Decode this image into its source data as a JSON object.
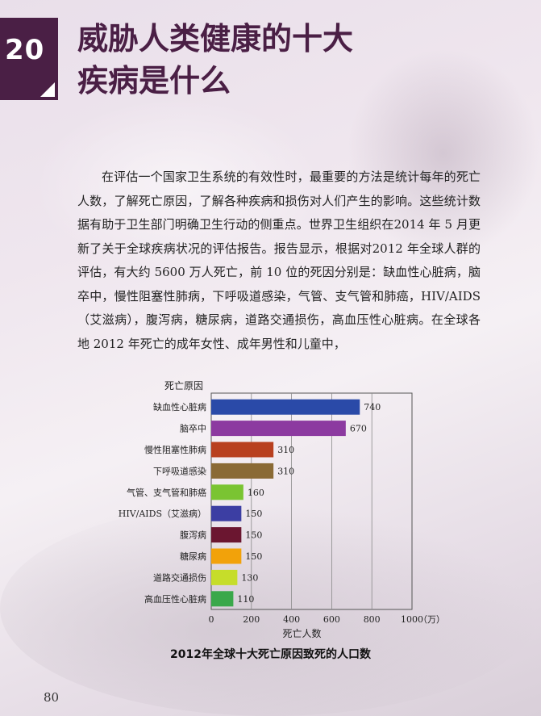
{
  "header": {
    "number": "20",
    "title_line1": "威胁人类健康的十大",
    "title_line2": "疾病是什么"
  },
  "body": {
    "paragraph": "在评估一个国家卫生系统的有效性时，最重要的方法是统计每年的死亡人数，了解死亡原因，了解各种疾病和损伤对人们产生的影响。这些统计数据有助于卫生部门明确卫生行动的侧重点。世界卫生组织在2014 年 5 月更新了关于全球疾病状况的评估报告。报告显示，根据对2012 年全球人群的评估，有大约 5600 万人死亡，前 10 位的死因分别是：缺血性心脏病，脑卒中，慢性阻塞性肺病，下呼吸道感染，气管、支气管和肺癌，HIV/AIDS（艾滋病），腹泻病，糖尿病，道路交通损伤，高血压性心脏病。在全球各地 2012 年死亡的成年女性、成年男性和儿童中，"
  },
  "chart_data": {
    "type": "bar",
    "orientation": "horizontal",
    "title": "2012年全球十大死亡原因致死的人口数",
    "ylabel": "死亡原因",
    "xlabel": "死亡人数",
    "x_unit": "（万）",
    "xlim": [
      0,
      1000
    ],
    "x_ticks": [
      "0",
      "200",
      "400",
      "600",
      "800",
      "1000"
    ],
    "grid": "vertical",
    "categories": [
      "缺血性心脏病",
      "脑卒中",
      "慢性阻塞性肺病",
      "下呼吸道感染",
      "气管、支气管和肺癌",
      "HIV/AIDS（艾滋病）",
      "腹泻病",
      "糖尿病",
      "道路交通损伤",
      "高血压性心脏病"
    ],
    "values": [
      740,
      670,
      310,
      310,
      160,
      150,
      150,
      150,
      130,
      110
    ],
    "colors": [
      "#2a4aa8",
      "#8c3aa0",
      "#b8401f",
      "#8a6a35",
      "#7ac432",
      "#3c3ea3",
      "#6b1630",
      "#f2a20a",
      "#c6dd2a",
      "#3aa84a"
    ]
  },
  "footer": {
    "page_number": "80"
  }
}
